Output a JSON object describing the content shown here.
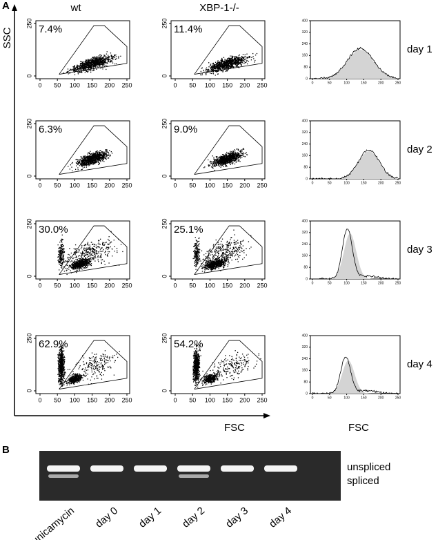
{
  "panel_a": {
    "label": "A",
    "y_axis_label": "SSC",
    "x_axis_label": "FSC",
    "hist_x_label": "FSC",
    "columns": [
      "wt",
      "XBP-1-/-"
    ],
    "rows": [
      {
        "day": "day 1",
        "percentages": [
          "7.4%",
          "11.4%"
        ]
      },
      {
        "day": "day 2",
        "percentages": [
          "6.3%",
          "9.0%"
        ]
      },
      {
        "day": "day 3",
        "percentages": [
          "30.0%",
          "25.1%"
        ]
      },
      {
        "day": "day 4",
        "percentages": [
          "62.9%",
          "54.2%"
        ]
      }
    ],
    "scatter_xticks": [
      0,
      50,
      100,
      150,
      200,
      250
    ],
    "scatter_yticks": [
      0,
      250
    ],
    "hist_xticks": [
      0,
      50,
      100,
      150,
      200,
      250
    ],
    "hist_yticks": [
      0,
      80,
      160,
      240,
      320,
      400
    ]
  },
  "panel_b": {
    "label": "B",
    "band_labels": [
      "unspliced",
      "spliced"
    ],
    "lanes": [
      "tunicamycin",
      "day 0",
      "day 1",
      "day 2",
      "day 3",
      "day 4"
    ]
  }
}
